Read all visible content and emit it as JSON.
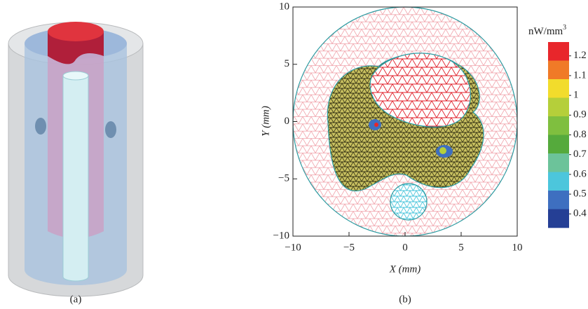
{
  "panels": {
    "a": {
      "label": "(a)"
    },
    "b": {
      "label": "(b)"
    }
  },
  "chart_data": {
    "type": "mesh",
    "xlabel": "X (mm)",
    "ylabel": "Y (mm)",
    "xlim": [
      -10,
      10
    ],
    "ylim": [
      -10,
      10
    ],
    "xticks": [
      {
        "value": -10,
        "label": "−10"
      },
      {
        "value": -5,
        "label": "−5"
      },
      0,
      5,
      10
    ],
    "yticks": [
      {
        "value": -10,
        "label": "−10"
      },
      {
        "value": -5,
        "label": "−5"
      },
      0,
      5,
      10
    ],
    "colorbar": {
      "title": "nW/mm",
      "title_superscript": "3",
      "clim": [
        0.33,
        1.27
      ],
      "ticks": [
        1.2,
        1.1,
        1,
        0.9,
        0.8,
        0.7,
        0.6,
        0.5,
        0.4
      ],
      "colors": [
        "#e8262b",
        "#f07a27",
        "#f2dc2c",
        "#b5cf3a",
        "#7fbf3f",
        "#55aa3c",
        "#6cc39a",
        "#4cc6dc",
        "#3e6fc0",
        "#253f95"
      ]
    }
  }
}
